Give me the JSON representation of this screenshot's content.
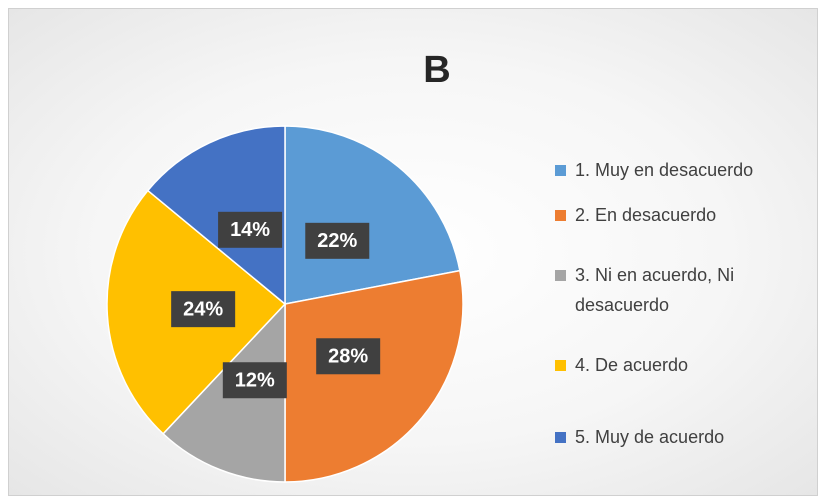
{
  "chart_data": {
    "type": "pie",
    "title": "B",
    "categories": [
      "1. Muy en desacuerdo",
      "2. En desacuerdo",
      "3. Ni en acuerdo, Ni desacuerdo",
      "4. De acuerdo",
      "5. Muy de acuerdo"
    ],
    "values": [
      22,
      28,
      12,
      24,
      14
    ],
    "value_labels": [
      "22%",
      "28%",
      "12%",
      "24%",
      "14%"
    ],
    "colors": [
      "#5b9bd5",
      "#ed7d31",
      "#a5a5a5",
      "#ffc000",
      "#4472c4"
    ],
    "legend": "right"
  }
}
